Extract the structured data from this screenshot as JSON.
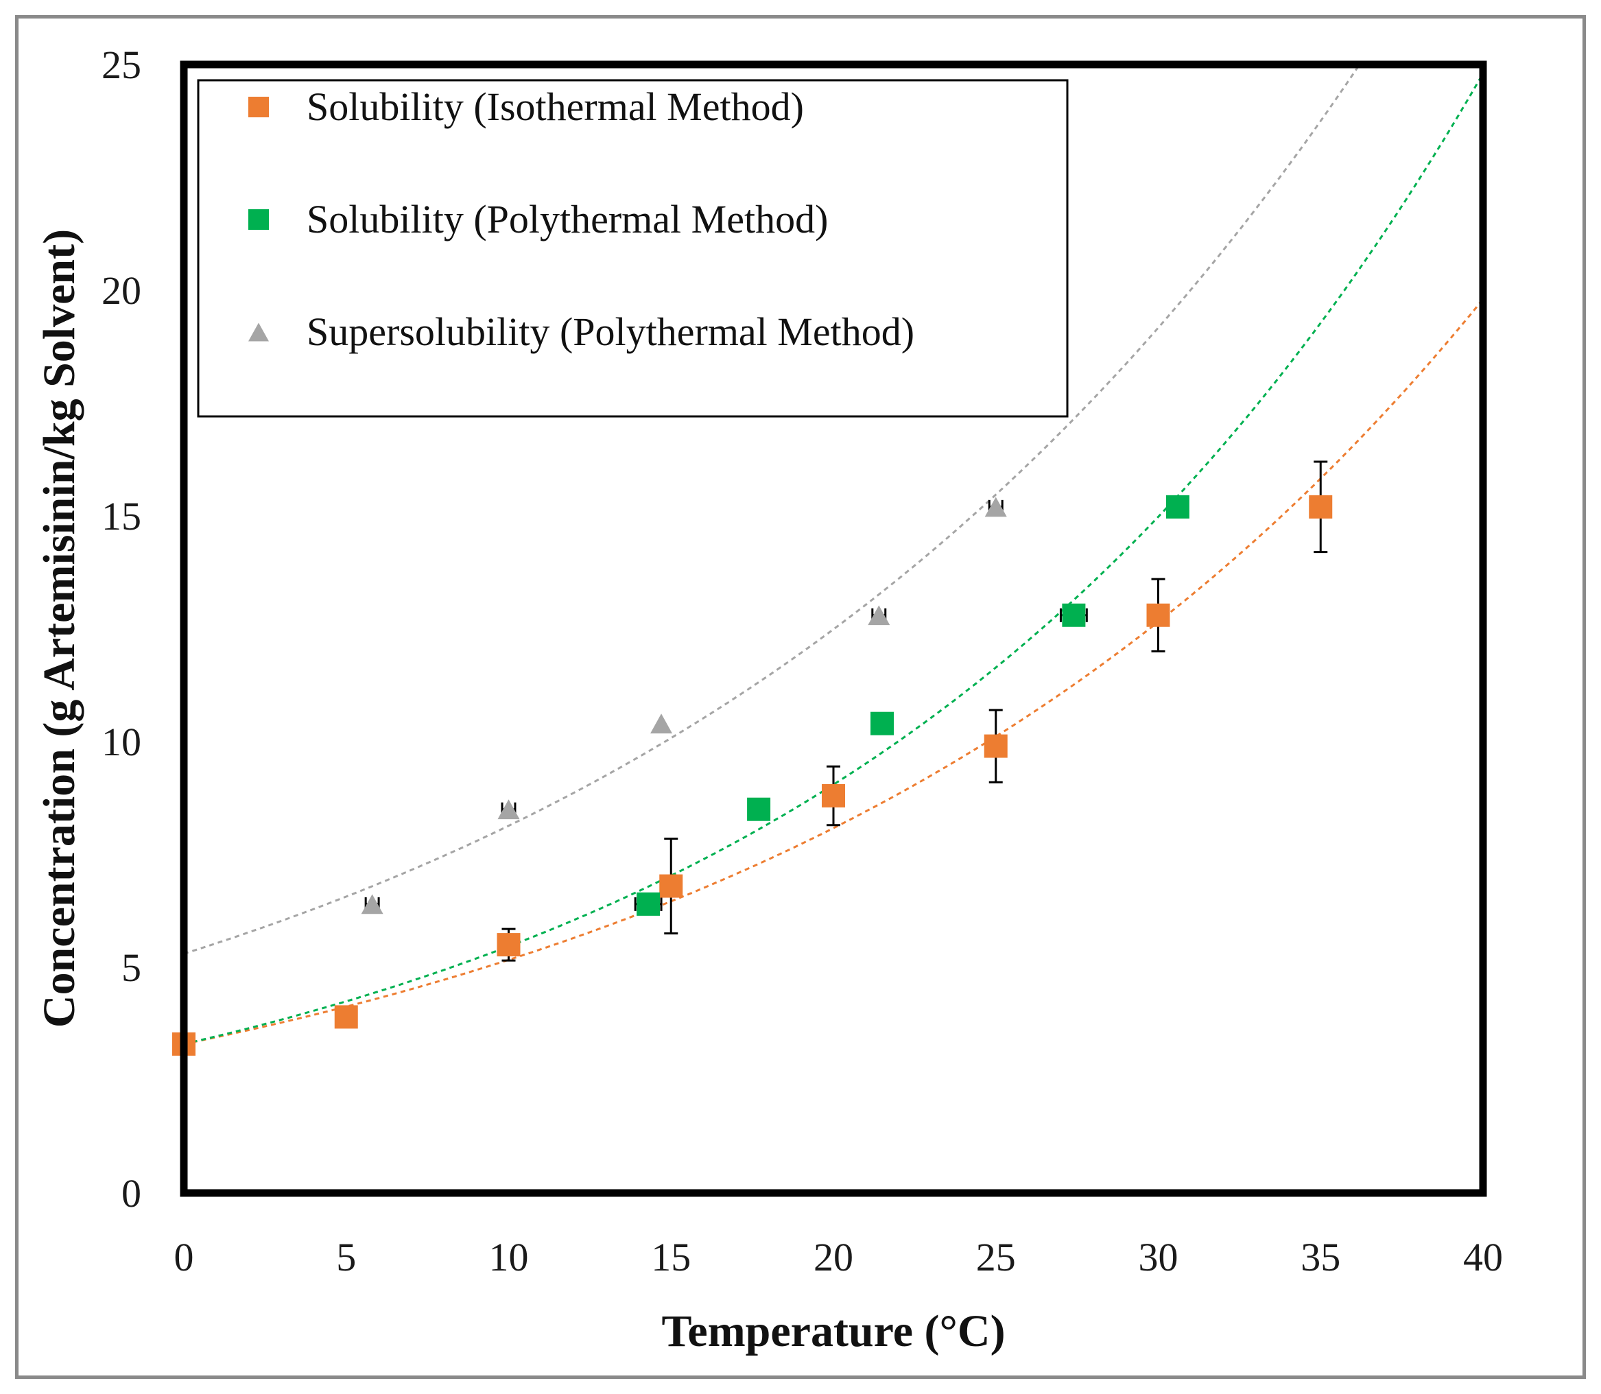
{
  "chart_data": {
    "type": "scatter",
    "title": "",
    "xlabel": "Temperature (°C)",
    "ylabel": "Concentration  (g Artemisinin/kg Solvent)",
    "xlim": [
      0,
      40
    ],
    "ylim": [
      0,
      25
    ],
    "x_ticks": [
      "0",
      "5",
      "10",
      "15",
      "20",
      "25",
      "30",
      "35",
      "40"
    ],
    "y_ticks": [
      "0",
      "5",
      "10",
      "15",
      "20",
      "25"
    ],
    "grid": false,
    "legend_position": "top-left",
    "series": [
      {
        "name": "Solubility (Isothermal Method)",
        "marker": "square",
        "color": "#ed7d31",
        "x": [
          0,
          5,
          10,
          15,
          20,
          25,
          30,
          35
        ],
        "y": [
          3.3,
          3.9,
          5.5,
          6.8,
          8.8,
          9.9,
          12.8,
          15.2
        ],
        "y_err": [
          0,
          0,
          0.35,
          1.05,
          0.65,
          0.8,
          0.8,
          1.0
        ],
        "x_err": [
          0,
          0,
          0,
          0,
          0,
          0,
          0,
          0
        ],
        "trendline": {
          "type": "exponential",
          "dashed": true,
          "from": [
            0,
            3.3
          ],
          "to": [
            40,
            19.8
          ]
        }
      },
      {
        "name": "Solubility (Polythermal Method)",
        "marker": "square",
        "color": "#00b050",
        "x": [
          14.3,
          17.7,
          21.5,
          27.4,
          30.6
        ],
        "y": [
          6.4,
          8.5,
          10.4,
          12.8,
          15.2
        ],
        "y_err": [
          0,
          0,
          0,
          0,
          0
        ],
        "x_err": [
          0.4,
          0,
          0,
          0.4,
          0
        ],
        "trendline": {
          "type": "exponential",
          "dashed": true,
          "from": [
            0,
            3.3
          ],
          "to": [
            40,
            24.8
          ]
        }
      },
      {
        "name": "Supersolubility (Polythermal Method)",
        "marker": "triangle",
        "color": "#a5a5a5",
        "x": [
          5.8,
          10,
          14.7,
          21.4,
          25
        ],
        "y": [
          6.4,
          8.5,
          10.4,
          12.8,
          15.2
        ],
        "y_err": [
          0,
          0,
          0,
          0,
          0
        ],
        "x_err": [
          0.2,
          0.2,
          0,
          0.2,
          0.2
        ],
        "trendline": {
          "type": "exponential",
          "dashed": true,
          "from": [
            0,
            5.3
          ],
          "to": [
            36.2,
            25
          ]
        }
      }
    ]
  }
}
